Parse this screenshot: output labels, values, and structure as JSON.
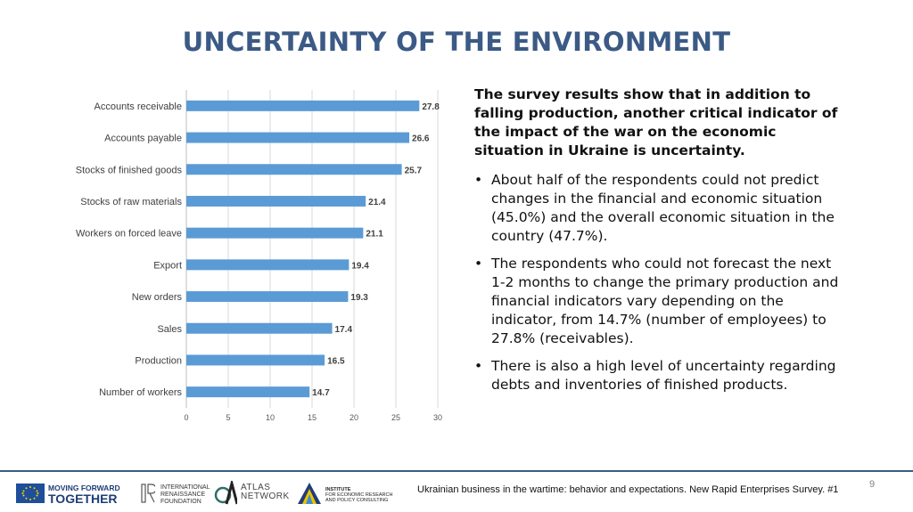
{
  "title": "UNCERTAINTY OF THE ENVIRONMENT",
  "chart_data": {
    "type": "bar",
    "orientation": "horizontal",
    "categories": [
      "Accounts receivable",
      "Accounts payable",
      "Stocks of finished goods",
      "Stocks of raw materials",
      "Workers on forced leave",
      "Export",
      "New orders",
      "Sales",
      "Production",
      "Number of workers"
    ],
    "values": [
      27.8,
      26.6,
      25.7,
      21.4,
      21.1,
      19.4,
      19.3,
      17.4,
      16.5,
      14.7
    ],
    "xlim": [
      0,
      30
    ],
    "xticks": [
      0,
      5,
      10,
      15,
      20,
      25,
      30
    ],
    "grid": true,
    "bar_color": "#5b9bd5",
    "data_labels": true
  },
  "text": {
    "lead": "The survey results show that in addition to falling production, another critical indicator of the impact of the war on the economic situation in Ukraine is uncertainty.",
    "bullets": [
      "About half of the respondents could not predict changes in the financial and economic situation (45.0%) and the overall economic situation in the country (47.7%).",
      "The respondents who could not forecast the next 1-2 months to change the primary production and financial indicators vary depending on the indicator, from 14.7% (number of employees) to 27.8% (receivables).",
      "There is also a high level of uncertainty regarding debts and inventories of finished products."
    ],
    "bullet_symbol": "•"
  },
  "footer": {
    "caption": "Ukrainian business in the wartime: behavior and expectations. New Rapid Enterprises Survey. #1",
    "page_number": "9",
    "logos": {
      "mft_line1": "MOVING FORWARD",
      "mft_line2": "TOGETHER",
      "irf_lines": [
        "INTERNATIONAL",
        "RENAISSANCE",
        "FOUNDATION"
      ],
      "atlas_lines": [
        "ATLAS",
        "NETWORK"
      ],
      "ier_lines": [
        "INSTITUTE",
        "FOR ECONOMIC RESEARCH",
        "AND POLICY CONSULTING"
      ]
    }
  },
  "colors": {
    "accent": "#3b5a85",
    "bar": "#5b9bd5"
  }
}
